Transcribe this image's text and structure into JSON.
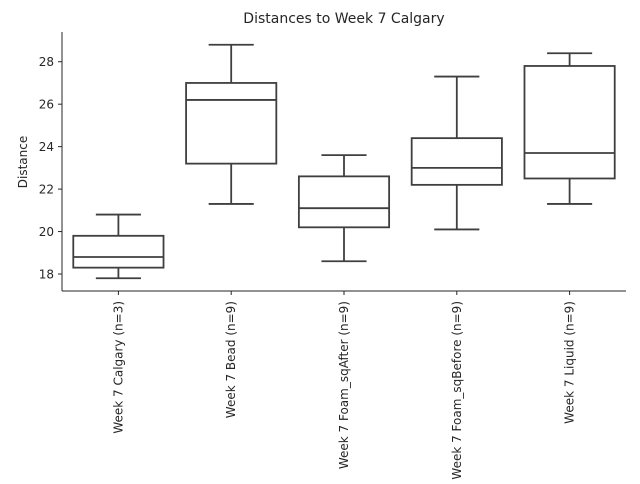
{
  "chart_data": {
    "type": "box",
    "title": "Distances to Week 7 Calgary",
    "xlabel": "",
    "ylabel": "Distance",
    "ylim": [
      17.2,
      29.4
    ],
    "yticks": [
      18,
      20,
      22,
      24,
      26,
      28
    ],
    "grid": false,
    "categories": [
      "Week 7 Calgary (n=3)",
      "Week 7 Bead (n=9)",
      "Week 7 Foam_sqAfter (n=9)",
      "Week 7 Foam_sqBefore (n=9)",
      "Week 7 Liquid (n=9)"
    ],
    "boxes": [
      {
        "whisker_low": 17.8,
        "q1": 18.3,
        "median": 18.8,
        "q3": 19.8,
        "whisker_high": 20.8
      },
      {
        "whisker_low": 21.3,
        "q1": 23.2,
        "median": 26.2,
        "q3": 27.0,
        "whisker_high": 28.8
      },
      {
        "whisker_low": 18.6,
        "q1": 20.2,
        "median": 21.1,
        "q3": 22.6,
        "whisker_high": 23.6
      },
      {
        "whisker_low": 20.1,
        "q1": 22.2,
        "median": 23.0,
        "q3": 24.4,
        "whisker_high": 27.3
      },
      {
        "whisker_low": 21.3,
        "q1": 22.5,
        "median": 23.7,
        "q3": 27.8,
        "whisker_high": 28.4
      }
    ]
  }
}
